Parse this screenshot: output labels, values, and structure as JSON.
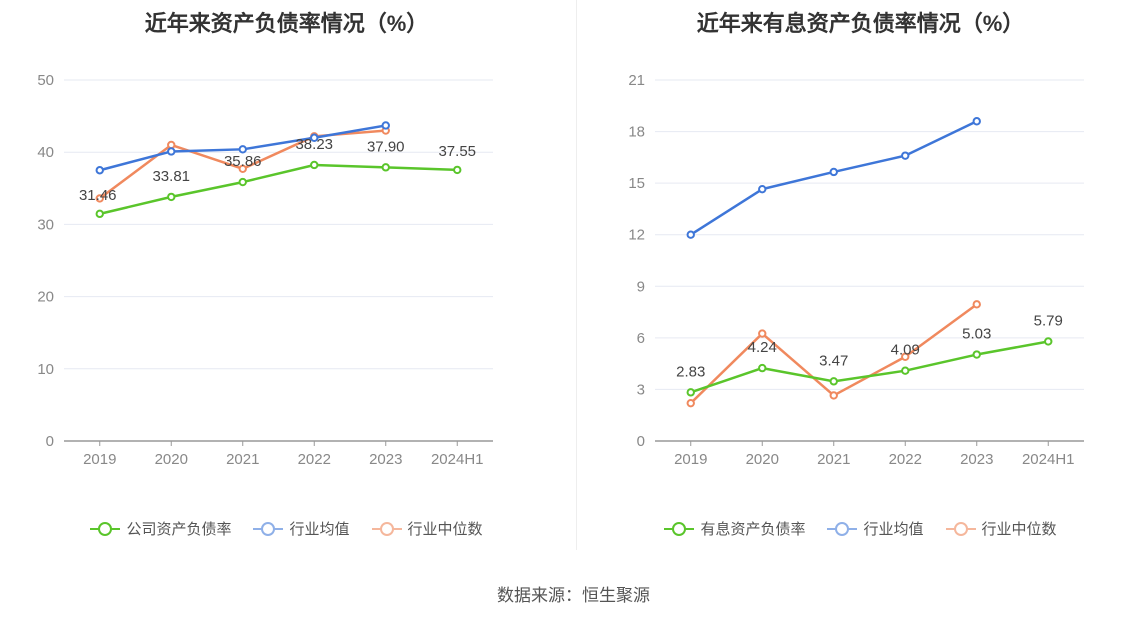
{
  "source": "数据来源：恒生聚源",
  "colors": {
    "company": "#5ac52b",
    "avg": "#3e76d8",
    "median": "#f0895e",
    "grid": "#e6e9f2",
    "axis": "#888888"
  },
  "chart_data": [
    {
      "type": "line",
      "title": "近年来资产负债率情况（%）",
      "categories": [
        "2019",
        "2020",
        "2021",
        "2022",
        "2023",
        "2024H1"
      ],
      "ylim": [
        0,
        50
      ],
      "yticks": [
        0,
        10,
        20,
        30,
        40,
        50
      ],
      "grid": true,
      "legend_position": "bottom",
      "series": [
        {
          "name": "公司资产负债率",
          "color": "#5ac52b",
          "values": [
            31.46,
            33.81,
            35.86,
            38.23,
            37.9,
            37.55
          ],
          "labels": [
            "31.46",
            "33.81",
            "35.86",
            "38.23",
            "37.90",
            "37.55"
          ]
        },
        {
          "name": "行业均值",
          "color": "#3e76d8",
          "values": [
            37.5,
            40.1,
            40.4,
            42.0,
            43.7,
            null
          ]
        },
        {
          "name": "行业中位数",
          "color": "#f0895e",
          "values": [
            33.6,
            41.0,
            37.7,
            42.2,
            43.0,
            null
          ]
        }
      ]
    },
    {
      "type": "line",
      "title": "近年来有息资产负债率情况（%）",
      "categories": [
        "2019",
        "2020",
        "2021",
        "2022",
        "2023",
        "2024H1"
      ],
      "ylim": [
        0,
        21
      ],
      "yticks": [
        0,
        3,
        6,
        9,
        12,
        15,
        18,
        21
      ],
      "grid": true,
      "legend_position": "bottom",
      "series": [
        {
          "name": "有息资产负债率",
          "color": "#5ac52b",
          "values": [
            2.83,
            4.24,
            3.47,
            4.09,
            5.03,
            5.79
          ],
          "labels": [
            "2.83",
            "4.24",
            "3.47",
            "4.09",
            "5.03",
            "5.79"
          ]
        },
        {
          "name": "行业均值",
          "color": "#3e76d8",
          "values": [
            12.0,
            14.65,
            15.65,
            16.6,
            18.6,
            null
          ]
        },
        {
          "name": "行业中位数",
          "color": "#f0895e",
          "values": [
            2.2,
            6.25,
            2.65,
            4.9,
            7.95,
            null
          ]
        }
      ]
    }
  ]
}
